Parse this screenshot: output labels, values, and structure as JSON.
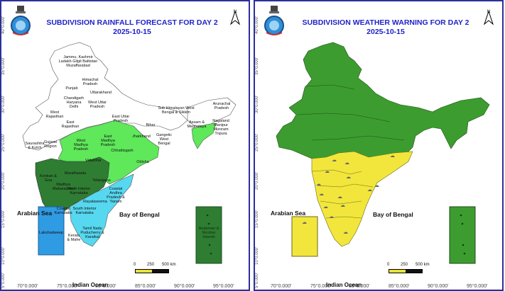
{
  "left_panel": {
    "title": "SUBDIVISION RAINFALL FORECAST FOR DAY 2",
    "date": "2025-10-15",
    "sea_west": "Arabian Sea",
    "sea_east": "Bay of Bengal",
    "ocean": "Indian Ocean",
    "scale": {
      "zero": "0",
      "mid": "250",
      "end": "500 km"
    },
    "lat_ticks": [
      "40°0.000'",
      "35°0.000'",
      "30°0.000'",
      "25°0.000'",
      "20°0.000'",
      "15°0.000'",
      "10°0.000'",
      "5°0.000'"
    ],
    "lon_ticks": [
      "70°0.000'",
      "75°0.000'",
      "80°0.000'",
      "85°0.000'",
      "90°0.000'",
      "95°0.000'"
    ],
    "regions": {
      "jk": "Jammu, Kashmir Ladakh Gilgit Baltistan Muzaffarabad",
      "hp": "Himachal Pradesh",
      "punjab": "Punjab",
      "uk": "Uttarakhand",
      "hcd": "Chandigarh Haryana Delhi",
      "wup": "West Uttar Pradesh",
      "wraj": "West Rajasthan",
      "eraj": "East Rajasthan",
      "eup": "East Uttar Pradesh",
      "bihar": "Bihar",
      "shwb": "Sub Himalayan West Bengal & Sikkim",
      "arun": "Arunachal Pradesh",
      "assam": "Assam & Meghalaya",
      "nmmt": "Nagaland Manipur Mizoram Tripura",
      "saur": "Saurashtra & Kutch",
      "guj": "Gujarat Region",
      "wmp": "West Madhya Pradesh",
      "emp": "East Madhya Pradesh",
      "jhar": "Jharkhand",
      "gwb": "Gangetic West Bengal",
      "chh": "Chhattisgarh",
      "vid": "Vidarbha",
      "odisha": "Odisha",
      "konkan": "Konkan & Goa",
      "mara": "Marathwada",
      "mmah": "Madhya Maharashtra",
      "nik": "North Interior Karnataka",
      "tel": "Telangana",
      "cap": "Coastal Andhra Pradesh & Yanam",
      "ray": "Rayalaseema",
      "ck": "Coastal Karnataka",
      "sik": "South Interior Karnataka",
      "tn": "Tamil Nadu Puducherry & Karaikal",
      "kerala": "Kerala & Mahe",
      "lak": "Lakshadweep",
      "an": "Andaman & Nicobar Islands"
    }
  },
  "right_panel": {
    "title": "SUBDIVISION WEATHER WARNING FOR DAY 2",
    "date": "2025-10-15",
    "sea_west": "Arabian Sea",
    "sea_east": "Bay of Bengal",
    "ocean": "Indian Ocean",
    "scale": {
      "zero": "0",
      "mid": "250",
      "end": "500 km"
    },
    "lat_ticks": [
      "40°0.000'",
      "35°0.000'",
      "30°0.000'",
      "25°0.000'",
      "20°0.000'",
      "15°0.000'",
      "10°0.000'",
      "5°0.000'"
    ],
    "lon_ticks": [
      "70°0.000'",
      "75°0.000'",
      "80°0.000'",
      "85°0.000'",
      "90°0.000'",
      "95°0.000'"
    ]
  },
  "colors": {
    "title": "#1f22c8",
    "border": "#2b2f9e",
    "rain_light_green": "#5ee85a",
    "rain_dark_green": "#2f7d32",
    "rain_cyan": "#56d8f0",
    "lakshadweep_blue": "#2f9be3",
    "warning_green": "#3d9c2f",
    "warning_yellow": "#f2e63c"
  }
}
